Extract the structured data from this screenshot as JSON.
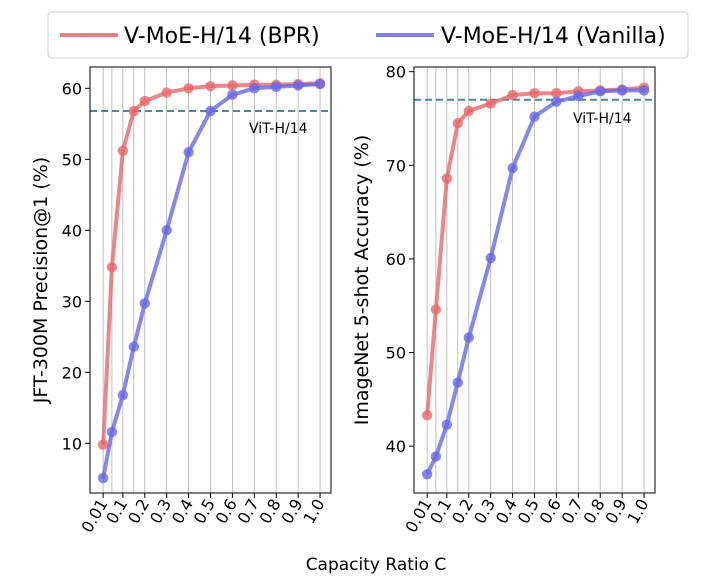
{
  "chart_data": {
    "type": "line",
    "xlabel": "Capacity Ratio C",
    "x_categories": [
      "0.01",
      "0.05",
      "0.1",
      "0.15",
      "0.2",
      "0.3",
      "0.4",
      "0.5",
      "0.6",
      "0.7",
      "0.8",
      "0.9",
      "1.0"
    ],
    "x_tick_labels": [
      "0.01",
      "0.1",
      "0.2",
      "0.3",
      "0.4",
      "0.5",
      "0.6",
      "0.7",
      "0.8",
      "0.9",
      "1.0"
    ],
    "legend": {
      "placement": "top-center",
      "entries": [
        {
          "name": "V-MoE-H/14 (BPR)",
          "color": "#e8686b"
        },
        {
          "name": "V-MoE-H/14 (Vanilla)",
          "color": "#6868e8"
        }
      ]
    },
    "panels": [
      {
        "name": "jft",
        "ylabel": "JFT-300M Precision@1 (%)",
        "ylim": [
          3,
          63
        ],
        "yticks": [
          10,
          20,
          30,
          40,
          50,
          60
        ],
        "baseline": {
          "label": "ViT-H/14",
          "value": 56.8,
          "color": "#4a86a8"
        },
        "series": [
          {
            "name": "V-MoE-H/14 (BPR)",
            "values": [
              9.8,
              34.8,
              51.2,
              56.8,
              58.2,
              59.4,
              60.0,
              60.3,
              60.4,
              60.5,
              60.5,
              60.6,
              60.7
            ]
          },
          {
            "name": "V-MoE-H/14 (Vanilla)",
            "values": [
              5.1,
              11.6,
              16.8,
              23.6,
              29.7,
              40.0,
              51.0,
              56.8,
              59.1,
              60.0,
              60.2,
              60.4,
              60.6
            ]
          }
        ]
      },
      {
        "name": "imagenet",
        "ylabel": "ImageNet 5-shot Accuracy (%)",
        "ylim": [
          35,
          80.5
        ],
        "yticks": [
          40,
          50,
          60,
          70,
          80
        ],
        "baseline": {
          "label": "ViT-H/14",
          "value": 77.0,
          "color": "#4a86a8"
        },
        "series": [
          {
            "name": "V-MoE-H/14 (BPR)",
            "values": [
              43.3,
              54.6,
              68.6,
              74.5,
              75.8,
              76.6,
              77.5,
              77.7,
              77.7,
              77.9,
              78.0,
              78.1,
              78.3
            ]
          },
          {
            "name": "V-MoE-H/14 (Vanilla)",
            "values": [
              37.0,
              38.9,
              42.3,
              46.8,
              51.6,
              60.1,
              69.7,
              75.2,
              76.8,
              77.4,
              77.9,
              78.0,
              78.0
            ]
          }
        ]
      }
    ]
  }
}
